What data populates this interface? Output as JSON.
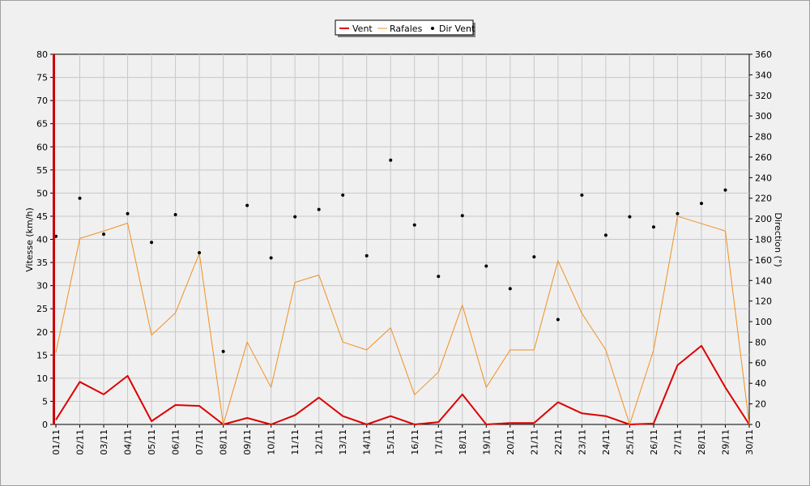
{
  "chart_data": {
    "type": "line",
    "categories": [
      "01/11",
      "02/11",
      "03/11",
      "04/11",
      "05/11",
      "06/11",
      "07/11",
      "08/11",
      "09/11",
      "10/11",
      "11/11",
      "12/11",
      "13/11",
      "14/11",
      "15/11",
      "16/11",
      "17/11",
      "18/11",
      "19/11",
      "20/11",
      "21/11",
      "22/11",
      "23/11",
      "24/11",
      "25/11",
      "26/11",
      "27/11",
      "28/11",
      "29/11",
      "30/11"
    ],
    "ylabel": "Vitesse (km/h)",
    "ylim": [
      0,
      80
    ],
    "y_ticks": [
      "0",
      "5",
      "10",
      "15",
      "20",
      "25",
      "30",
      "35",
      "40",
      "45",
      "50",
      "55",
      "60",
      "65",
      "70",
      "75",
      "80"
    ],
    "y2label": "Direction (°)",
    "y2lim": [
      0,
      360
    ],
    "y2_ticks": [
      "0",
      "20",
      "40",
      "60",
      "80",
      "100",
      "120",
      "140",
      "160",
      "180",
      "200",
      "220",
      "240",
      "260",
      "280",
      "300",
      "320",
      "340",
      "360"
    ],
    "grid": true,
    "legend_position": "top-center",
    "series": [
      {
        "name": "Vent",
        "kind": "line",
        "axis": "left",
        "color": "#dd0000",
        "values": [
          1,
          9.2,
          6.5,
          10.5,
          0.7,
          4.2,
          4,
          0,
          1.4,
          0,
          2,
          5.8,
          1.8,
          0,
          1.8,
          0,
          0.5,
          6.5,
          0,
          0.3,
          0.3,
          4.8,
          2.4,
          1.8,
          0,
          0.2,
          12.8,
          17,
          8,
          0
        ]
      },
      {
        "name": "Rafales",
        "kind": "line",
        "axis": "left",
        "color": "#f09020",
        "values": [
          15.5,
          40.2,
          41.8,
          43.5,
          19.3,
          24.1,
          37,
          0,
          17.8,
          8,
          30.7,
          32.3,
          17.8,
          16.1,
          20.9,
          6.4,
          11.3,
          25.8,
          8,
          16.1,
          16.1,
          35.4,
          24,
          16.1,
          0,
          16.1,
          45,
          43.4,
          41.8,
          0
        ]
      },
      {
        "name": "Dir Vent",
        "kind": "scatter",
        "axis": "right",
        "color": "#000000",
        "values": [
          183,
          220,
          185,
          205,
          177,
          204,
          167,
          71,
          213,
          162,
          202,
          209,
          223,
          164,
          257,
          194,
          144,
          203,
          154,
          132,
          163,
          102,
          223,
          184,
          202,
          192,
          205,
          215,
          228,
          null
        ]
      }
    ]
  }
}
